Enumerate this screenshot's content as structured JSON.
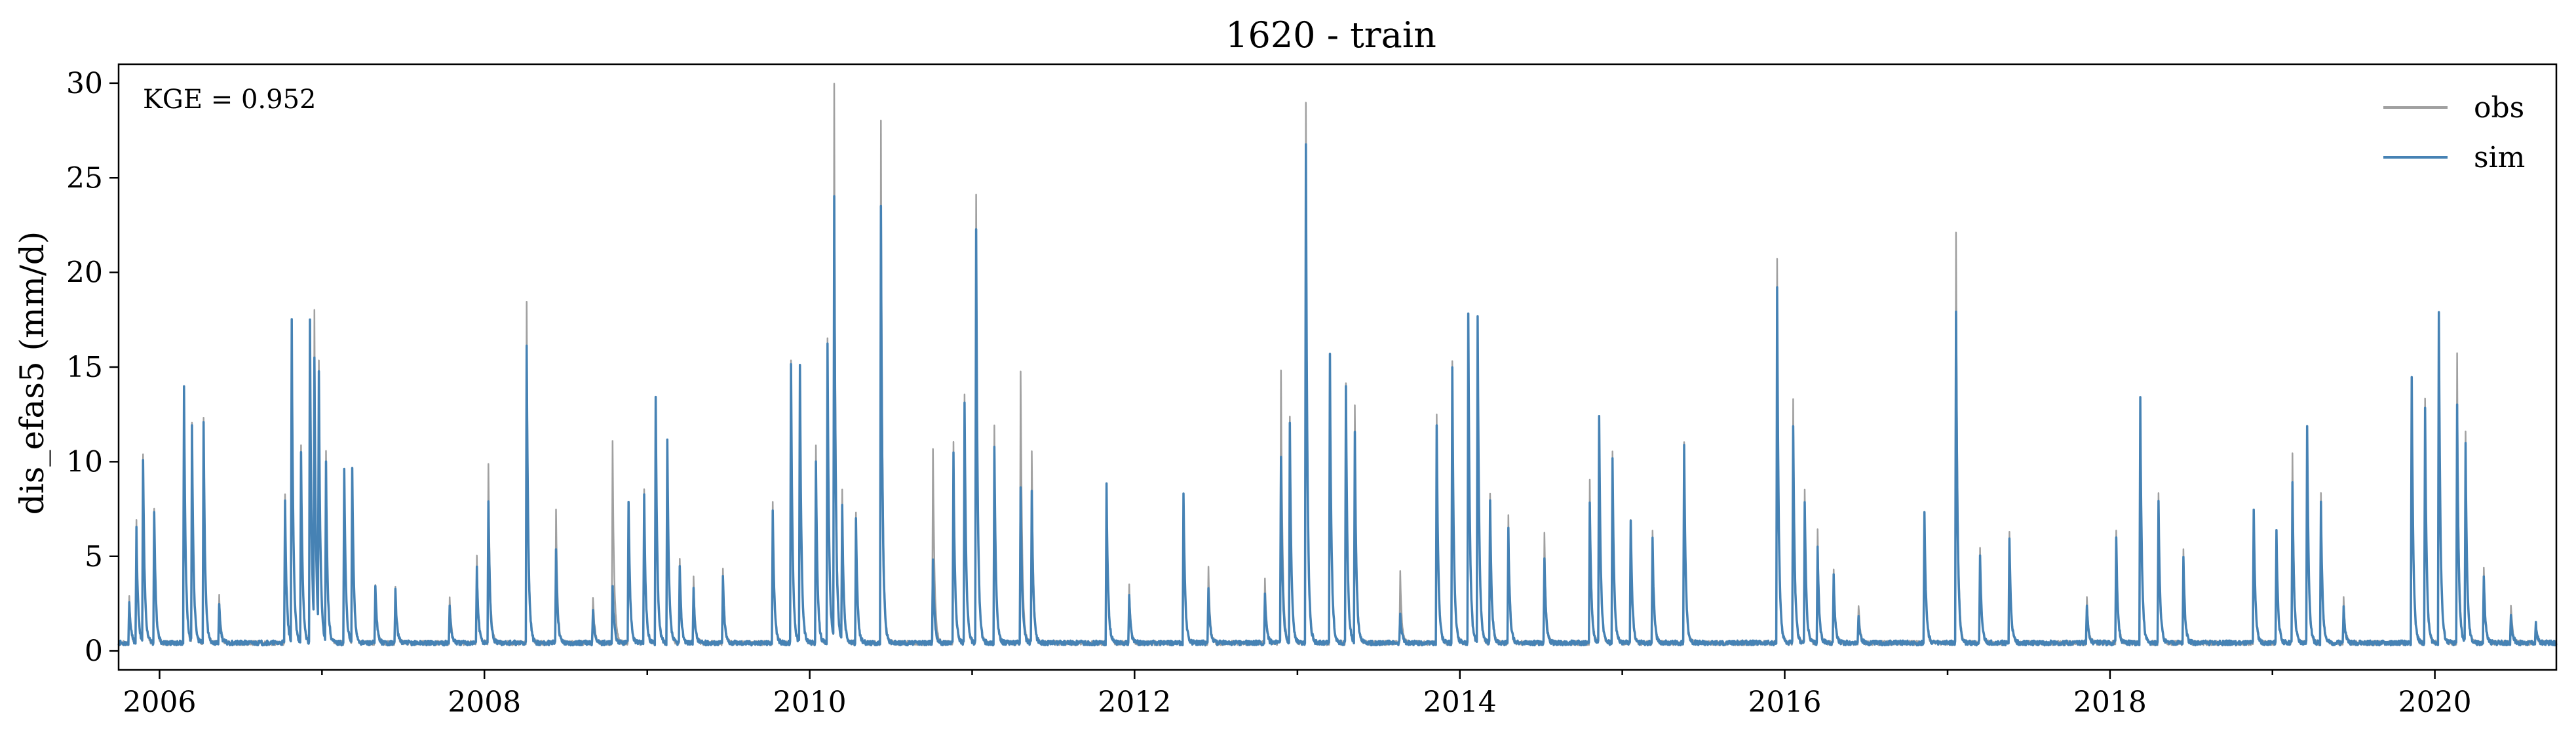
{
  "chart_data": {
    "type": "line",
    "title": "1620 - train",
    "xlabel": "",
    "ylabel": "dis_efas5 (mm/d)",
    "annotation": "KGE = 0.952",
    "xlim": [
      "2005-10-01",
      "2020-09-30"
    ],
    "ylim": [
      -1,
      31
    ],
    "x_ticks": [
      "2006",
      "2008",
      "2010",
      "2012",
      "2014",
      "2016",
      "2018",
      "2020"
    ],
    "y_ticks": [
      "0",
      "5",
      "10",
      "15",
      "20",
      "25",
      "30"
    ],
    "legend": {
      "position": "top-right",
      "frame": false
    },
    "grid": false,
    "baseline": 0.3,
    "series": [
      {
        "name": "obs",
        "color": "#a0a0a0",
        "peaks": [
          [
            "2005-10-25",
            2.5
          ],
          [
            "2005-11-10",
            6.5
          ],
          [
            "2005-11-25",
            9.8
          ],
          [
            "2005-12-20",
            7.0
          ],
          [
            "2006-02-25",
            13.0
          ],
          [
            "2006-03-15",
            11.5
          ],
          [
            "2006-04-10",
            11.8
          ],
          [
            "2006-05-15",
            2.5
          ],
          [
            "2006-10-10",
            7.8
          ],
          [
            "2006-10-25",
            17.0
          ],
          [
            "2006-11-15",
            10.5
          ],
          [
            "2006-12-05",
            17.0
          ],
          [
            "2006-12-15",
            16.5
          ],
          [
            "2006-12-25",
            14.0
          ],
          [
            "2007-01-10",
            10.0
          ],
          [
            "2007-02-20",
            9.2
          ],
          [
            "2007-03-10",
            9.2
          ],
          [
            "2007-05-01",
            3.0
          ],
          [
            "2007-06-15",
            3.0
          ],
          [
            "2007-10-15",
            2.5
          ],
          [
            "2007-12-15",
            4.5
          ],
          [
            "2008-01-10",
            9.5
          ],
          [
            "2008-04-05",
            18.0
          ],
          [
            "2008-06-10",
            7.0
          ],
          [
            "2008-09-01",
            2.5
          ],
          [
            "2008-10-15",
            10.8
          ],
          [
            "2008-11-20",
            7.5
          ],
          [
            "2008-12-25",
            8.0
          ],
          [
            "2009-01-20",
            12.0
          ],
          [
            "2009-02-15",
            10.5
          ],
          [
            "2009-03-15",
            4.5
          ],
          [
            "2009-04-15",
            3.5
          ],
          [
            "2009-06-20",
            4.0
          ],
          [
            "2009-10-10",
            7.5
          ],
          [
            "2009-11-20",
            15.0
          ],
          [
            "2009-12-10",
            14.5
          ],
          [
            "2010-01-15",
            10.5
          ],
          [
            "2010-02-10",
            16.0
          ],
          [
            "2010-02-25",
            29.3
          ],
          [
            "2010-03-15",
            8.0
          ],
          [
            "2010-04-15",
            7.0
          ],
          [
            "2010-06-10",
            27.7
          ],
          [
            "2010-10-05",
            10.3
          ],
          [
            "2010-11-20",
            10.5
          ],
          [
            "2010-12-15",
            13.0
          ],
          [
            "2011-01-10",
            23.8
          ],
          [
            "2011-02-20",
            11.5
          ],
          [
            "2011-04-20",
            14.3
          ],
          [
            "2011-05-15",
            10.2
          ],
          [
            "2011-10-30",
            8.3
          ],
          [
            "2011-12-20",
            3.0
          ],
          [
            "2012-04-20",
            7.8
          ],
          [
            "2012-06-15",
            4.0
          ],
          [
            "2012-10-20",
            3.5
          ],
          [
            "2012-11-25",
            14.5
          ],
          [
            "2012-12-15",
            12.0
          ],
          [
            "2013-01-20",
            28.6
          ],
          [
            "2013-03-15",
            15.2
          ],
          [
            "2013-04-20",
            13.8
          ],
          [
            "2013-05-10",
            12.5
          ],
          [
            "2013-08-20",
            3.7
          ],
          [
            "2013-11-10",
            12.0
          ],
          [
            "2013-12-15",
            15.0
          ],
          [
            "2014-01-20",
            17.2
          ],
          [
            "2014-02-10",
            17.2
          ],
          [
            "2014-03-10",
            8.0
          ],
          [
            "2014-04-20",
            6.8
          ],
          [
            "2014-07-10",
            5.8
          ],
          [
            "2014-10-20",
            8.5
          ],
          [
            "2014-11-10",
            12.0
          ],
          [
            "2014-12-10",
            10.0
          ],
          [
            "2015-01-20",
            6.5
          ],
          [
            "2015-03-10",
            6.0
          ],
          [
            "2015-05-20",
            10.5
          ],
          [
            "2015-12-15",
            20.2
          ],
          [
            "2016-01-20",
            13.0
          ],
          [
            "2016-02-15",
            8.0
          ],
          [
            "2016-03-15",
            6.0
          ],
          [
            "2016-04-20",
            4.0
          ],
          [
            "2016-06-15",
            2.0
          ],
          [
            "2016-11-10",
            6.8
          ],
          [
            "2017-01-20",
            21.8
          ],
          [
            "2017-03-15",
            5.0
          ],
          [
            "2017-05-20",
            5.8
          ],
          [
            "2017-11-10",
            2.5
          ],
          [
            "2018-01-15",
            6.0
          ],
          [
            "2018-03-10",
            12.5
          ],
          [
            "2018-04-20",
            8.0
          ],
          [
            "2018-06-15",
            5.0
          ],
          [
            "2018-11-20",
            7.0
          ],
          [
            "2019-01-10",
            6.0
          ],
          [
            "2019-02-15",
            10.0
          ],
          [
            "2019-03-20",
            11.5
          ],
          [
            "2019-04-20",
            8.0
          ],
          [
            "2019-06-10",
            2.5
          ],
          [
            "2019-11-10",
            14.0
          ],
          [
            "2019-12-10",
            13.0
          ],
          [
            "2020-01-10",
            17.3
          ],
          [
            "2020-02-20",
            15.3
          ],
          [
            "2020-03-10",
            11.0
          ],
          [
            "2020-04-20",
            4.0
          ],
          [
            "2020-06-20",
            2.0
          ],
          [
            "2020-08-15",
            1.0
          ]
        ]
      },
      {
        "name": "sim",
        "color": "#4682b4",
        "peaks": [
          [
            "2005-10-25",
            2.2
          ],
          [
            "2005-11-10",
            6.2
          ],
          [
            "2005-11-25",
            9.6
          ],
          [
            "2005-12-20",
            7.0
          ],
          [
            "2006-02-25",
            13.6
          ],
          [
            "2006-03-15",
            11.3
          ],
          [
            "2006-04-10",
            11.6
          ],
          [
            "2006-05-15",
            2.0
          ],
          [
            "2006-10-10",
            7.5
          ],
          [
            "2006-10-25",
            17.0
          ],
          [
            "2006-11-15",
            10.0
          ],
          [
            "2006-12-05",
            17.0
          ],
          [
            "2006-12-15",
            14.0
          ],
          [
            "2006-12-25",
            13.5
          ],
          [
            "2007-01-10",
            9.5
          ],
          [
            "2007-02-20",
            9.2
          ],
          [
            "2007-03-10",
            9.2
          ],
          [
            "2007-05-01",
            3.0
          ],
          [
            "2007-06-15",
            2.8
          ],
          [
            "2007-10-15",
            2.0
          ],
          [
            "2007-12-15",
            4.0
          ],
          [
            "2008-01-10",
            7.5
          ],
          [
            "2008-04-05",
            15.8
          ],
          [
            "2008-06-10",
            5.0
          ],
          [
            "2008-09-01",
            1.8
          ],
          [
            "2008-10-15",
            3.0
          ],
          [
            "2008-11-20",
            7.5
          ],
          [
            "2008-12-25",
            7.8
          ],
          [
            "2009-01-20",
            13.1
          ],
          [
            "2009-02-15",
            10.7
          ],
          [
            "2009-03-15",
            4.0
          ],
          [
            "2009-04-15",
            2.8
          ],
          [
            "2009-06-20",
            3.5
          ],
          [
            "2009-10-10",
            7.0
          ],
          [
            "2009-11-20",
            14.8
          ],
          [
            "2009-12-10",
            14.6
          ],
          [
            "2010-01-15",
            9.5
          ],
          [
            "2010-02-10",
            15.8
          ],
          [
            "2010-02-25",
            23.3
          ],
          [
            "2010-03-15",
            7.2
          ],
          [
            "2010-04-15",
            6.5
          ],
          [
            "2010-06-10",
            23.2
          ],
          [
            "2010-10-05",
            4.5
          ],
          [
            "2010-11-20",
            10.0
          ],
          [
            "2010-12-15",
            12.8
          ],
          [
            "2011-01-10",
            21.9
          ],
          [
            "2011-02-20",
            10.4
          ],
          [
            "2011-04-20",
            8.2
          ],
          [
            "2011-05-15",
            8.0
          ],
          [
            "2011-10-30",
            8.3
          ],
          [
            "2011-12-20",
            2.5
          ],
          [
            "2012-04-20",
            7.9
          ],
          [
            "2012-06-15",
            3.0
          ],
          [
            "2012-10-20",
            2.5
          ],
          [
            "2012-11-25",
            9.8
          ],
          [
            "2012-12-15",
            11.5
          ],
          [
            "2013-01-20",
            26.3
          ],
          [
            "2013-03-15",
            15.2
          ],
          [
            "2013-04-20",
            13.5
          ],
          [
            "2013-05-10",
            11.0
          ],
          [
            "2013-08-20",
            1.5
          ],
          [
            "2013-11-10",
            11.5
          ],
          [
            "2013-12-15",
            14.5
          ],
          [
            "2014-01-20",
            17.3
          ],
          [
            "2014-02-10",
            17.2
          ],
          [
            "2014-03-10",
            7.5
          ],
          [
            "2014-04-20",
            6.0
          ],
          [
            "2014-07-10",
            4.5
          ],
          [
            "2014-10-20",
            7.5
          ],
          [
            "2014-11-10",
            12.0
          ],
          [
            "2014-12-10",
            9.8
          ],
          [
            "2015-01-20",
            6.5
          ],
          [
            "2015-03-10",
            5.5
          ],
          [
            "2015-05-20",
            10.5
          ],
          [
            "2015-12-15",
            18.8
          ],
          [
            "2016-01-20",
            11.5
          ],
          [
            "2016-02-15",
            7.5
          ],
          [
            "2016-03-15",
            5.0
          ],
          [
            "2016-04-20",
            3.5
          ],
          [
            "2016-06-15",
            1.5
          ],
          [
            "2016-11-10",
            6.9
          ],
          [
            "2017-01-20",
            17.4
          ],
          [
            "2017-03-15",
            4.5
          ],
          [
            "2017-05-20",
            5.5
          ],
          [
            "2017-11-10",
            2.0
          ],
          [
            "2018-01-15",
            5.5
          ],
          [
            "2018-03-10",
            12.9
          ],
          [
            "2018-04-20",
            7.5
          ],
          [
            "2018-06-15",
            4.5
          ],
          [
            "2018-11-20",
            7.1
          ],
          [
            "2019-01-10",
            6.0
          ],
          [
            "2019-02-15",
            8.5
          ],
          [
            "2019-03-20",
            11.4
          ],
          [
            "2019-04-20",
            7.5
          ],
          [
            "2019-06-10",
            2.0
          ],
          [
            "2019-11-10",
            14.1
          ],
          [
            "2019-12-10",
            12.5
          ],
          [
            "2020-01-10",
            17.5
          ],
          [
            "2020-02-20",
            12.5
          ],
          [
            "2020-03-10",
            10.5
          ],
          [
            "2020-04-20",
            3.5
          ],
          [
            "2020-06-20",
            1.5
          ],
          [
            "2020-08-15",
            1.0
          ]
        ]
      }
    ]
  }
}
